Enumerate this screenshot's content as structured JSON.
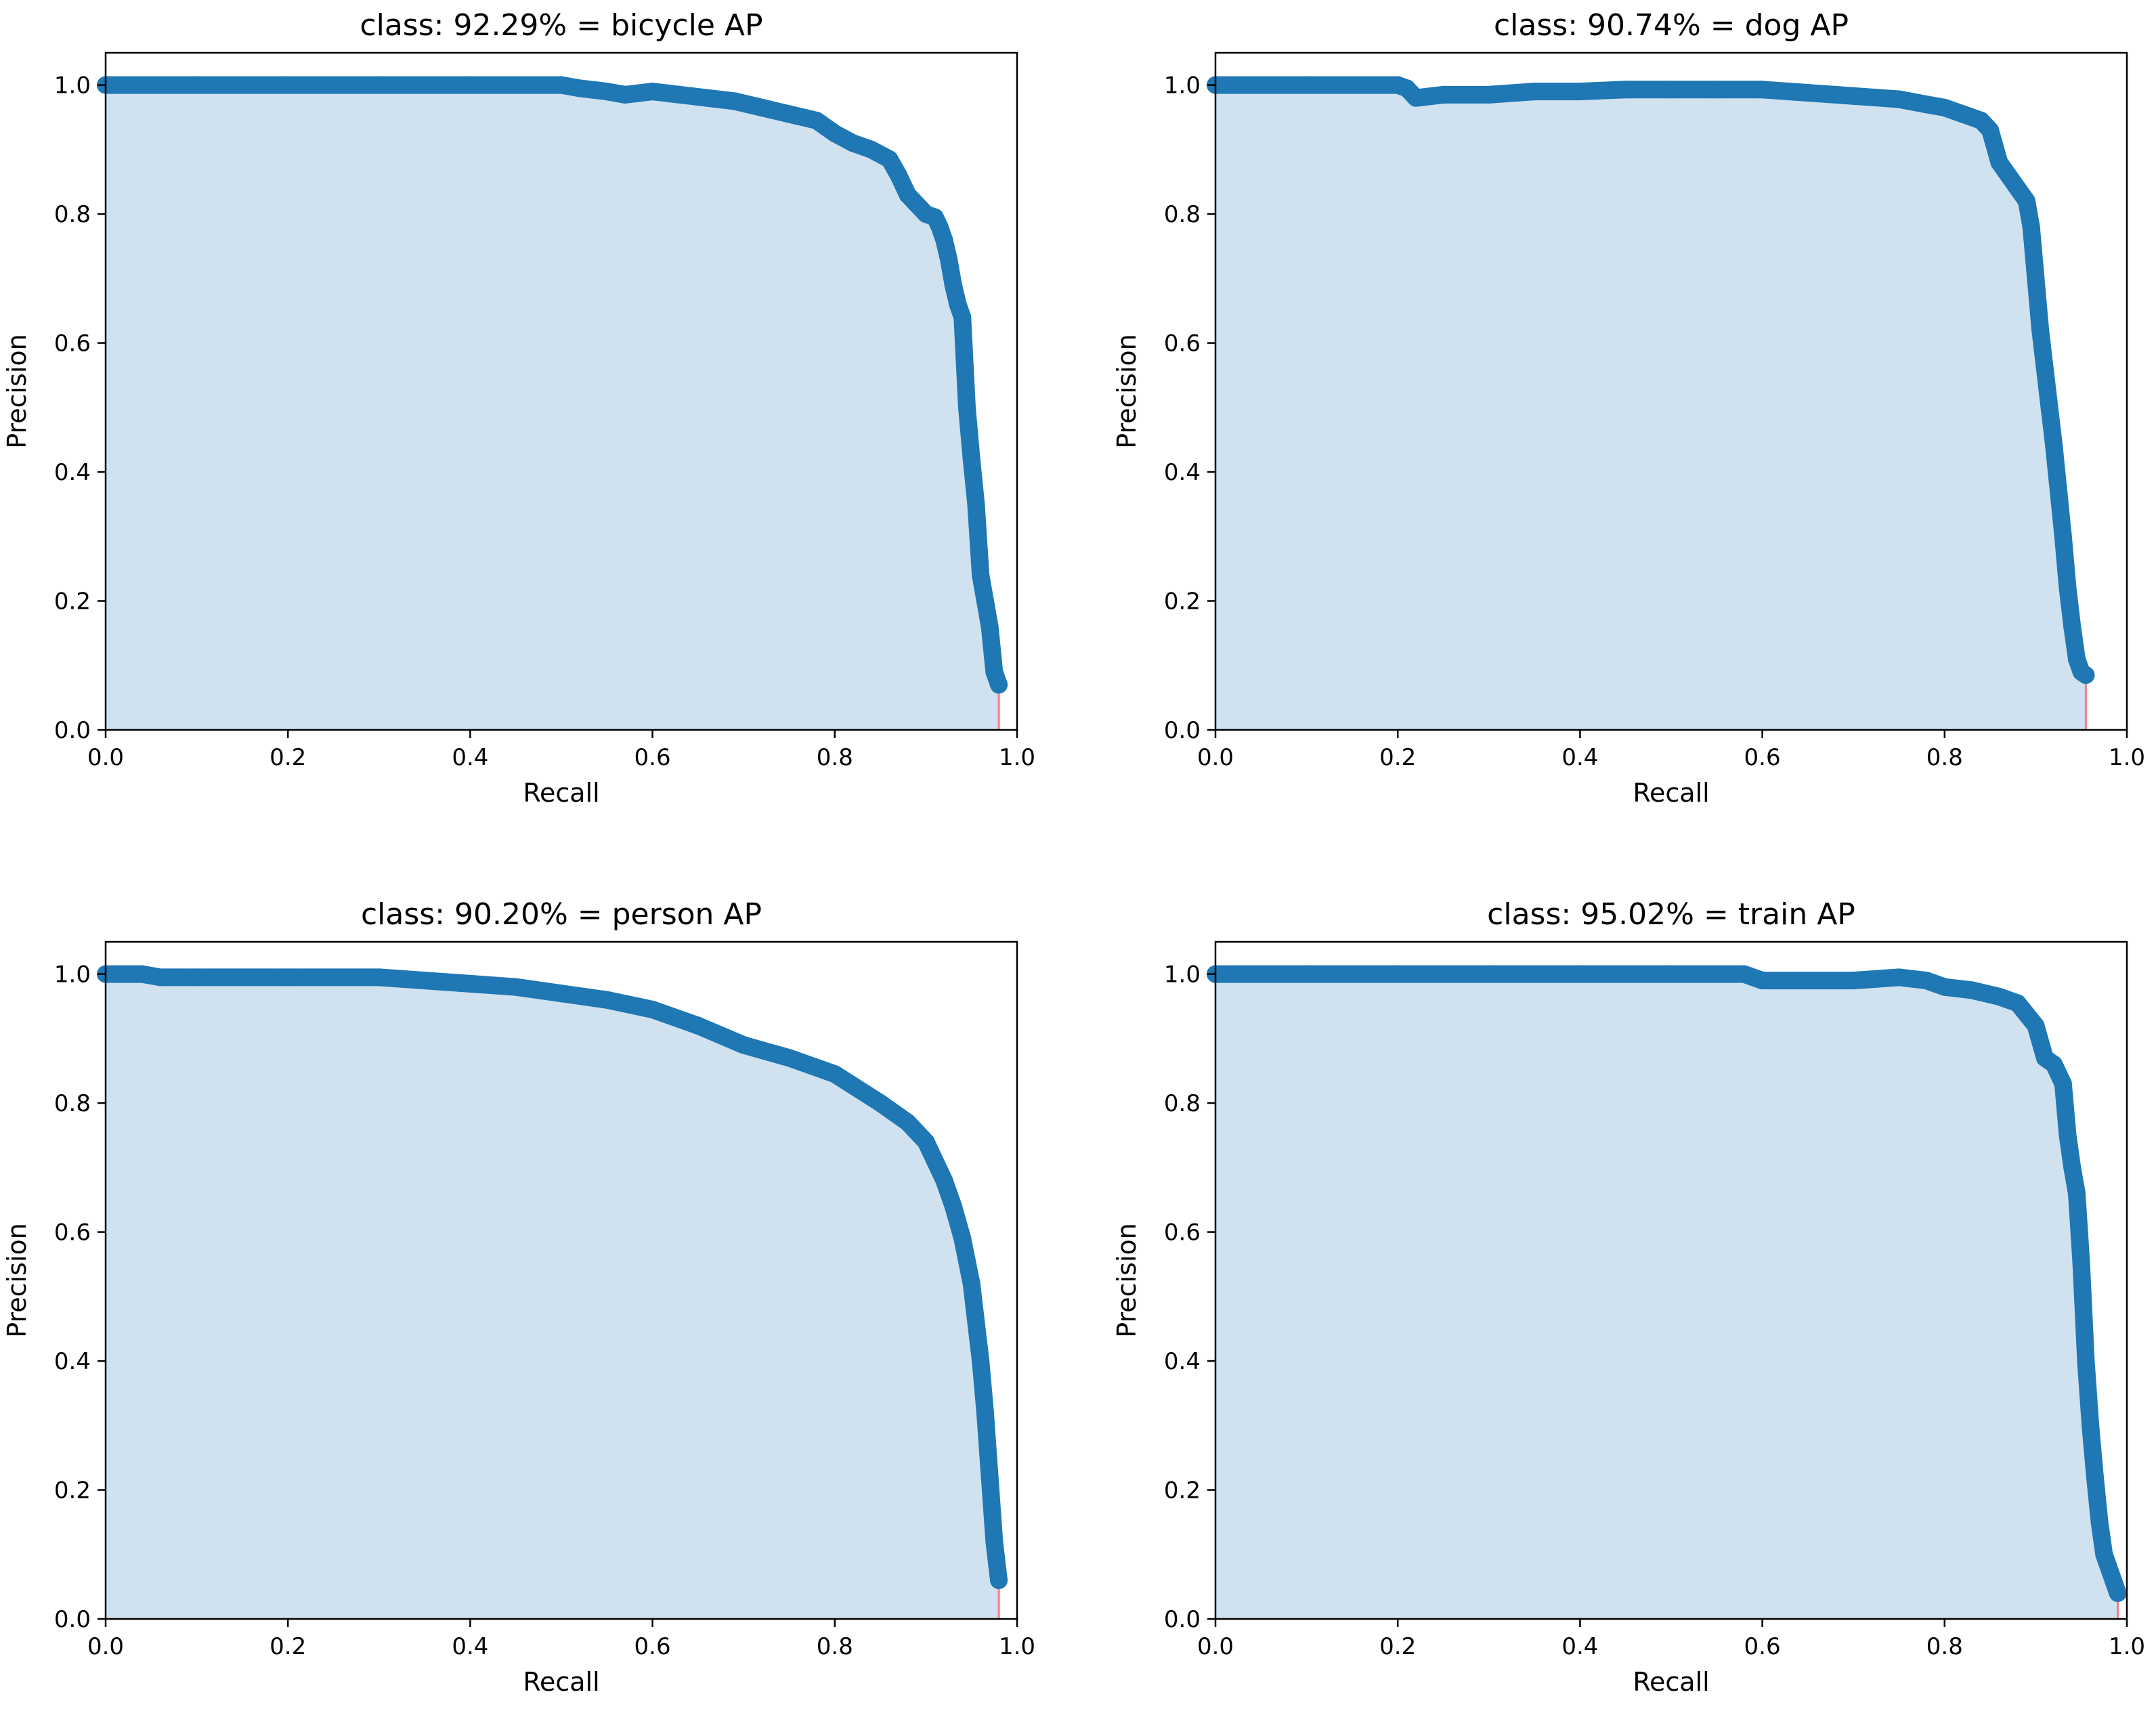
{
  "figure": {
    "background": "#ffffff",
    "line_color": "#1f77b4",
    "fill_color": "#d0e2f0",
    "drop_color": "#f08080"
  },
  "chart_data": [
    {
      "type": "area",
      "title": "class: 92.29% = bicycle AP",
      "xlabel": "Recall",
      "ylabel": "Precision",
      "xlim": [
        0,
        1
      ],
      "ylim": [
        0,
        1.05
      ],
      "xticks": [
        "0.0",
        "0.2",
        "0.4",
        "0.6",
        "0.8",
        "1.0"
      ],
      "yticks": [
        "0.0",
        "0.2",
        "0.4",
        "0.6",
        "0.8",
        "1.0"
      ],
      "grid": false,
      "series": [
        {
          "x": [
            0,
            0.1,
            0.2,
            0.3,
            0.4,
            0.5,
            0.52,
            0.55,
            0.57,
            0.6,
            0.63,
            0.66,
            0.69,
            0.72,
            0.75,
            0.78,
            0.8,
            0.82,
            0.84,
            0.86,
            0.87,
            0.88,
            0.89,
            0.9,
            0.91,
            0.915,
            0.92,
            0.925,
            0.93,
            0.935,
            0.94,
            0.945,
            0.95,
            0.955,
            0.96,
            0.965,
            0.97,
            0.975,
            0.98
          ],
          "y": [
            1.0,
            1.0,
            1.0,
            1.0,
            1.0,
            1.0,
            0.995,
            0.99,
            0.985,
            0.99,
            0.985,
            0.98,
            0.975,
            0.965,
            0.955,
            0.945,
            0.925,
            0.91,
            0.9,
            0.885,
            0.86,
            0.83,
            0.815,
            0.8,
            0.795,
            0.78,
            0.76,
            0.73,
            0.69,
            0.66,
            0.64,
            0.5,
            0.42,
            0.35,
            0.24,
            0.2,
            0.16,
            0.09,
            0.07
          ]
        }
      ]
    },
    {
      "type": "area",
      "title": "class: 90.74% = dog AP",
      "xlabel": "Recall",
      "ylabel": "Precision",
      "xlim": [
        0,
        1
      ],
      "ylim": [
        0,
        1.05
      ],
      "xticks": [
        "0.0",
        "0.2",
        "0.4",
        "0.6",
        "0.8",
        "1.0"
      ],
      "yticks": [
        "0.0",
        "0.2",
        "0.4",
        "0.6",
        "0.8",
        "1.0"
      ],
      "grid": false,
      "series": [
        {
          "x": [
            0,
            0.1,
            0.2,
            0.21,
            0.22,
            0.25,
            0.3,
            0.35,
            0.4,
            0.45,
            0.5,
            0.55,
            0.6,
            0.65,
            0.7,
            0.75,
            0.78,
            0.8,
            0.82,
            0.84,
            0.85,
            0.86,
            0.87,
            0.88,
            0.89,
            0.895,
            0.9,
            0.905,
            0.91,
            0.915,
            0.92,
            0.925,
            0.93,
            0.935,
            0.94,
            0.945,
            0.95,
            0.955
          ],
          "y": [
            1.0,
            1.0,
            1.0,
            0.995,
            0.98,
            0.985,
            0.985,
            0.99,
            0.99,
            0.993,
            0.993,
            0.993,
            0.993,
            0.988,
            0.983,
            0.978,
            0.97,
            0.965,
            0.955,
            0.945,
            0.93,
            0.88,
            0.86,
            0.84,
            0.82,
            0.78,
            0.7,
            0.62,
            0.56,
            0.5,
            0.44,
            0.37,
            0.3,
            0.22,
            0.16,
            0.11,
            0.09,
            0.085
          ]
        }
      ]
    },
    {
      "type": "area",
      "title": "class: 90.20% = person AP",
      "xlabel": "Recall",
      "ylabel": "Precision",
      "xlim": [
        0,
        1
      ],
      "ylim": [
        0,
        1.05
      ],
      "xticks": [
        "0.0",
        "0.2",
        "0.4",
        "0.6",
        "0.8",
        "1.0"
      ],
      "yticks": [
        "0.0",
        "0.2",
        "0.4",
        "0.6",
        "0.8",
        "1.0"
      ],
      "grid": false,
      "series": [
        {
          "x": [
            0,
            0.04,
            0.06,
            0.1,
            0.2,
            0.3,
            0.35,
            0.4,
            0.45,
            0.5,
            0.55,
            0.6,
            0.65,
            0.7,
            0.75,
            0.8,
            0.85,
            0.88,
            0.9,
            0.92,
            0.93,
            0.94,
            0.95,
            0.955,
            0.96,
            0.965,
            0.97,
            0.975,
            0.98
          ],
          "y": [
            1.0,
            1.0,
            0.995,
            0.995,
            0.995,
            0.995,
            0.99,
            0.985,
            0.98,
            0.97,
            0.96,
            0.945,
            0.92,
            0.89,
            0.87,
            0.845,
            0.8,
            0.77,
            0.74,
            0.68,
            0.64,
            0.59,
            0.52,
            0.46,
            0.4,
            0.32,
            0.22,
            0.12,
            0.06
          ]
        }
      ]
    },
    {
      "type": "area",
      "title": "class: 95.02% = train AP",
      "xlabel": "Recall",
      "ylabel": "Precision",
      "xlim": [
        0,
        1
      ],
      "ylim": [
        0,
        1.05
      ],
      "xticks": [
        "0.0",
        "0.2",
        "0.4",
        "0.6",
        "0.8",
        "1.0"
      ],
      "yticks": [
        "0.0",
        "0.2",
        "0.4",
        "0.6",
        "0.8",
        "1.0"
      ],
      "grid": false,
      "series": [
        {
          "x": [
            0,
            0.1,
            0.2,
            0.3,
            0.4,
            0.5,
            0.58,
            0.6,
            0.65,
            0.7,
            0.75,
            0.78,
            0.8,
            0.83,
            0.86,
            0.88,
            0.9,
            0.91,
            0.92,
            0.93,
            0.935,
            0.94,
            0.945,
            0.95,
            0.955,
            0.96,
            0.965,
            0.97,
            0.975,
            0.98,
            0.985,
            0.99
          ],
          "y": [
            1.0,
            1.0,
            1.0,
            1.0,
            1.0,
            1.0,
            1.0,
            0.99,
            0.99,
            0.99,
            0.995,
            0.99,
            0.98,
            0.975,
            0.965,
            0.955,
            0.92,
            0.87,
            0.86,
            0.83,
            0.75,
            0.7,
            0.66,
            0.55,
            0.4,
            0.3,
            0.22,
            0.15,
            0.1,
            0.08,
            0.06,
            0.04
          ]
        }
      ]
    }
  ]
}
